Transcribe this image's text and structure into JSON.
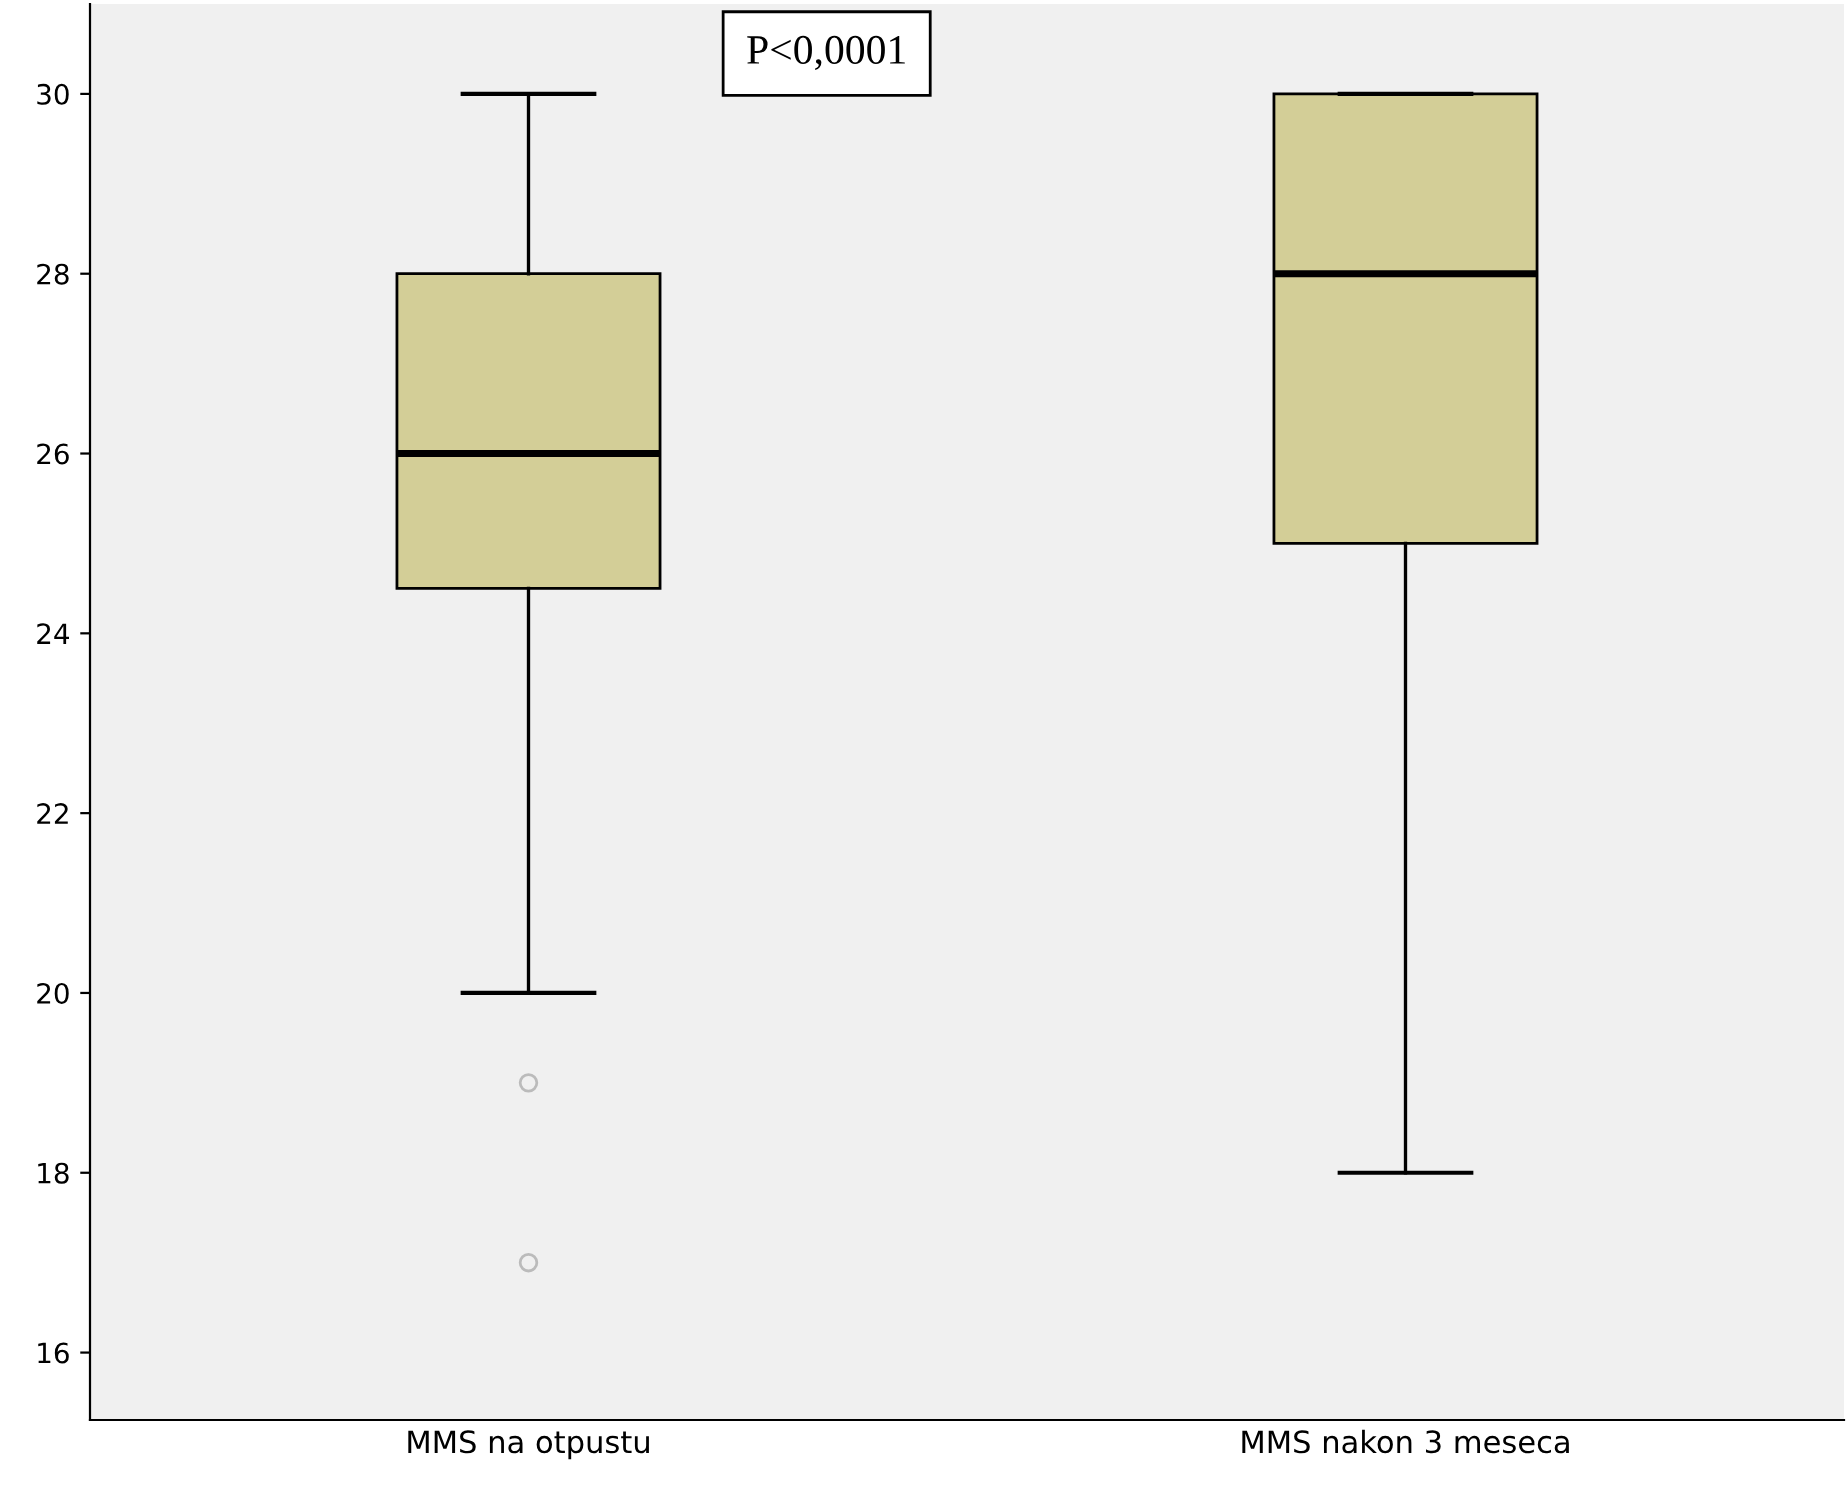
{
  "chart_data": {
    "type": "box",
    "categories": [
      "MMS na otpustu",
      "MMS nakon 3 meseca"
    ],
    "series": [
      {
        "color": "#d3ce97",
        "boxes": [
          {
            "low": 20,
            "q1": 24.5,
            "median": 26,
            "q3": 28,
            "high": 30,
            "outliers": [
              19,
              17
            ]
          },
          {
            "low": 18,
            "q1": 25,
            "median": 28,
            "q3": 30,
            "high": 30
          }
        ]
      }
    ],
    "ylim": [
      15.25,
      31.0
    ],
    "yticks": [
      16,
      18,
      20,
      22,
      24,
      26,
      28,
      30
    ],
    "annotations": [
      "P<0,0001"
    ],
    "grid": false,
    "legend": false
  }
}
